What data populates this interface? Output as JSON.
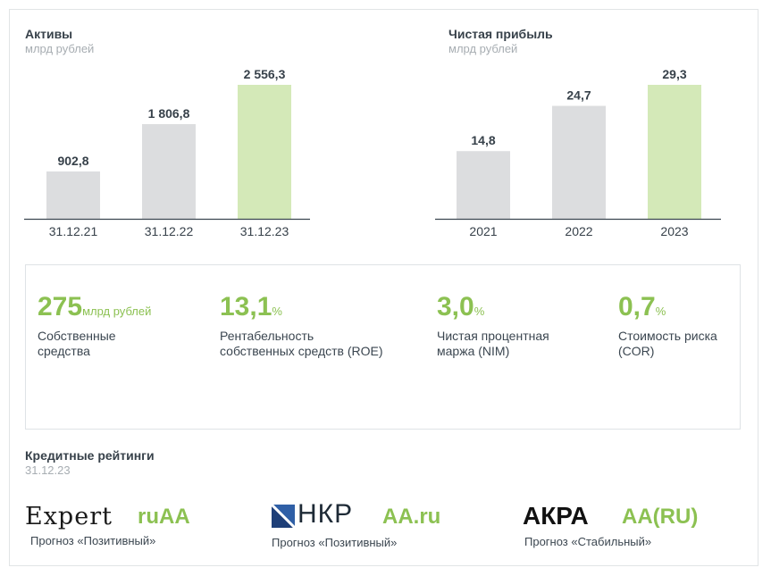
{
  "assets": {
    "title": "Активы",
    "unit": "млрд рублей"
  },
  "profit": {
    "title": "Чистая прибыль",
    "unit": "млрд рублей"
  },
  "chart_data": [
    {
      "type": "bar",
      "title": "Активы",
      "subtitle": "млрд рублей",
      "categories": [
        "31.12.21",
        "31.12.22",
        "31.12.23"
      ],
      "values": [
        902.8,
        1806.8,
        2556.3
      ],
      "value_labels": [
        "902,8",
        "1 806,8",
        "2 556,3"
      ],
      "highlight_index": 2,
      "colors": {
        "bar": "#dcdddf",
        "highlight": "#d4e9b8",
        "axis": "#3b4650"
      },
      "ylim": [
        0,
        2556.3
      ],
      "grid": false
    },
    {
      "type": "bar",
      "title": "Чистая прибыль",
      "subtitle": "млрд рублей",
      "categories": [
        "2021",
        "2022",
        "2023"
      ],
      "values": [
        14.8,
        24.7,
        29.3
      ],
      "value_labels": [
        "14,8",
        "24,7",
        "29,3"
      ],
      "highlight_index": 2,
      "colors": {
        "bar": "#dcdddf",
        "highlight": "#d4e9b8",
        "axis": "#3b4650"
      },
      "ylim": [
        0,
        29.3
      ],
      "grid": false
    }
  ],
  "kpis": [
    {
      "value": "275",
      "unit": "млрд рублей",
      "label_line1": "Собственные",
      "label_line2": "средства"
    },
    {
      "value": "13,1",
      "unit": "%",
      "label_line1": "Рентабельность",
      "label_line2": "собственных средств (ROE)"
    },
    {
      "value": "3,0",
      "unit": "%",
      "label_line1": "Чистая процентная",
      "label_line2": "маржа (NIM)"
    },
    {
      "value": "0,7",
      "unit": "%",
      "label_line1": "Стоимость риска",
      "label_line2": "(COR)"
    }
  ],
  "ratings": {
    "title": "Кредитные рейтинги",
    "date": "31.12.23",
    "items": [
      {
        "agency": "Expert",
        "grade": "ruAA",
        "outlook": "Прогноз «Позитивный»"
      },
      {
        "agency": "НКР",
        "grade": "AA.ru",
        "outlook": "Прогноз «Позитивный»"
      },
      {
        "agency": "АКРА",
        "grade": "AA(RU)",
        "outlook": "Прогноз «Стабильный»"
      }
    ]
  },
  "colors": {
    "accent": "#8cc152",
    "text": "#3b4650",
    "muted": "#a7adb2"
  }
}
